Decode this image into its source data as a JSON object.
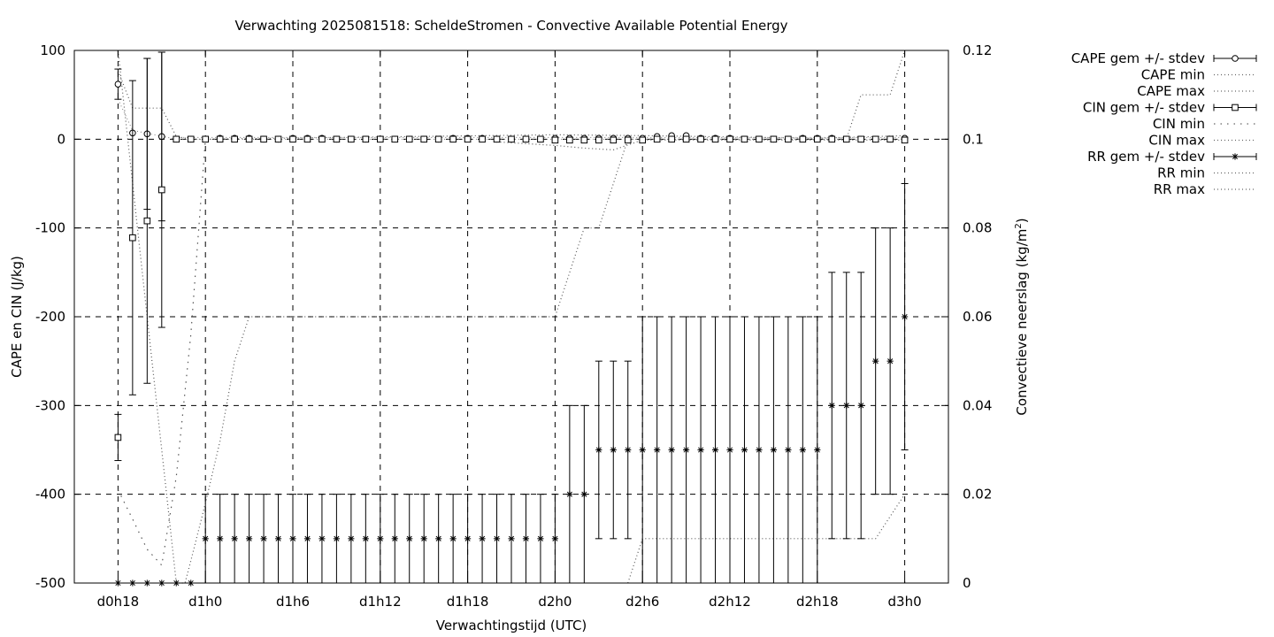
{
  "chart_data": {
    "type": "line",
    "title": "Verwachting 2025081518: ScheldeStromen - Convective Available Potential Energy",
    "xlabel": "Verwachtingstijd (UTC)",
    "ylabel": "CAPE en CIN (J/kg)",
    "y2label": "Convectieve neerslag (kg/m",
    "y2label_sup": "2",
    "y2label_end": ")",
    "x_unit": "forecast hours since d0h18",
    "xlim": [
      -3,
      57
    ],
    "ylim": [
      -500,
      100
    ],
    "y2lim": [
      0,
      0.12
    ],
    "grid": true,
    "legend_position": "outside-top-right",
    "x_ticks": [
      {
        "x": 0,
        "label": "d0h18"
      },
      {
        "x": 6,
        "label": "d1h0"
      },
      {
        "x": 12,
        "label": "d1h6"
      },
      {
        "x": 18,
        "label": "d1h12"
      },
      {
        "x": 24,
        "label": "d1h18"
      },
      {
        "x": 30,
        "label": "d2h0"
      },
      {
        "x": 36,
        "label": "d2h6"
      },
      {
        "x": 42,
        "label": "d2h12"
      },
      {
        "x": 48,
        "label": "d2h18"
      },
      {
        "x": 54,
        "label": "d3h0"
      }
    ],
    "y_ticks": [
      {
        "v": 100,
        "label": "100"
      },
      {
        "v": 0,
        "label": "0"
      },
      {
        "v": -100,
        "label": "-100"
      },
      {
        "v": -200,
        "label": "-200"
      },
      {
        "v": -300,
        "label": "-300"
      },
      {
        "v": -400,
        "label": "-400"
      },
      {
        "v": -500,
        "label": "-500"
      }
    ],
    "y2_ticks": [
      {
        "v": 0.12,
        "label": "0.12"
      },
      {
        "v": 0.1,
        "label": "0.1"
      },
      {
        "v": 0.08,
        "label": "0.08"
      },
      {
        "v": 0.06,
        "label": "0.06"
      },
      {
        "v": 0.04,
        "label": "0.04"
      },
      {
        "v": 0.02,
        "label": "0.02"
      },
      {
        "v": 0,
        "label": "0"
      }
    ],
    "legend": [
      {
        "label": "CAPE gem +/- stdev",
        "style": "errorbar",
        "marker": "circle"
      },
      {
        "label": "CAPE min",
        "style": "dotted"
      },
      {
        "label": "CAPE max",
        "style": "dotted"
      },
      {
        "label": "CIN gem +/- stdev",
        "style": "errorbar",
        "marker": "square"
      },
      {
        "label": "CIN min",
        "style": "dotted-sparse"
      },
      {
        "label": "CIN max",
        "style": "dotted"
      },
      {
        "label": "RR gem +/- stdev",
        "style": "errorbar",
        "marker": "star"
      },
      {
        "label": "RR min",
        "style": "dotted"
      },
      {
        "label": "RR max",
        "style": "dotted"
      }
    ],
    "series": [
      {
        "name": "CAPE gem +/- stdev",
        "axis": "y1",
        "x": [
          0,
          1,
          2,
          3
        ],
        "values": [
          62,
          7,
          6,
          3
        ],
        "err": [
          17,
          0,
          85,
          95
        ]
      },
      {
        "name": "CAPE gem +/- stdev (rest)",
        "axis": "y1",
        "x": [
          4,
          5,
          6,
          7,
          8,
          9,
          10,
          11,
          12,
          13,
          14,
          15,
          16,
          17,
          18,
          19,
          20,
          21,
          22,
          23,
          24,
          25,
          26,
          27,
          28,
          29,
          30,
          31,
          32,
          33,
          34,
          35,
          36,
          37,
          38,
          39,
          40,
          41,
          42,
          43,
          44,
          45,
          46,
          47,
          48,
          49,
          50,
          51,
          52,
          53,
          54
        ],
        "values": [
          0,
          0,
          0,
          1,
          1,
          1,
          0,
          0,
          1,
          1,
          1,
          0,
          0,
          0,
          0,
          0,
          0,
          0,
          0,
          1,
          1,
          1,
          0,
          0,
          0,
          0,
          1,
          1,
          1,
          1,
          1,
          1,
          1,
          3,
          4,
          4,
          1,
          1,
          1,
          0,
          0,
          0,
          0,
          1,
          1,
          1,
          0,
          0,
          0,
          0,
          1
        ]
      },
      {
        "name": "CIN gem +/- stdev",
        "axis": "y1",
        "x": [
          0,
          1,
          2,
          3
        ],
        "values": [
          -336,
          -111,
          -92,
          -57
        ],
        "err": [
          26,
          177,
          183,
          155
        ]
      },
      {
        "name": "CIN gem +/- stdev (rest)",
        "axis": "y1",
        "x": [
          4,
          5,
          6,
          7,
          8,
          9,
          10,
          11,
          12,
          13,
          14,
          15,
          16,
          17,
          18,
          19,
          20,
          21,
          22,
          23,
          24,
          25,
          26,
          27,
          28,
          29,
          30,
          31,
          32,
          33,
          34,
          35,
          36,
          37,
          38,
          39,
          40,
          41,
          42,
          43,
          44,
          45,
          46,
          47,
          48,
          49,
          50,
          51,
          52,
          53,
          54
        ],
        "values": [
          0,
          0,
          0,
          0,
          0,
          0,
          0,
          0,
          0,
          0,
          0,
          0,
          0,
          0,
          0,
          0,
          0,
          0,
          0,
          0,
          0,
          0,
          0,
          0,
          0,
          0,
          -1,
          -1,
          -1,
          -1,
          -1,
          -1,
          -1,
          0,
          0,
          0,
          0,
          0,
          0,
          0,
          0,
          0,
          0,
          0,
          0,
          0,
          0,
          0,
          0,
          0,
          -1
        ]
      },
      {
        "name": "RR gem +/- stdev",
        "axis": "y2",
        "x": [
          0,
          1,
          2,
          3,
          4,
          5,
          6,
          7,
          8,
          9,
          10,
          11,
          12,
          13,
          14,
          15,
          16,
          17,
          18,
          19,
          20,
          21,
          22,
          23,
          24,
          25,
          26,
          27,
          28,
          29,
          30,
          31,
          32,
          33,
          34,
          35,
          36,
          37,
          38,
          39,
          40,
          41,
          42,
          43,
          44,
          45,
          46,
          47,
          48,
          49,
          50,
          51,
          52,
          53,
          54
        ],
        "values": [
          0,
          0,
          0,
          0,
          0,
          0,
          0.01,
          0.01,
          0.01,
          0.01,
          0.01,
          0.01,
          0.01,
          0.01,
          0.01,
          0.01,
          0.01,
          0.01,
          0.01,
          0.01,
          0.01,
          0.01,
          0.01,
          0.01,
          0.01,
          0.01,
          0.01,
          0.01,
          0.01,
          0.01,
          0.01,
          0.02,
          0.02,
          0.03,
          0.03,
          0.03,
          0.03,
          0.03,
          0.03,
          0.03,
          0.03,
          0.03,
          0.03,
          0.03,
          0.03,
          0.03,
          0.03,
          0.03,
          0.03,
          0.04,
          0.04,
          0.04,
          0.05,
          0.05,
          0.06
        ],
        "err": [
          0,
          0,
          0,
          0,
          0,
          0,
          0.01,
          0.01,
          0.01,
          0.01,
          0.01,
          0.01,
          0.01,
          0.01,
          0.01,
          0.01,
          0.01,
          0.01,
          0.01,
          0.01,
          0.01,
          0.01,
          0.01,
          0.01,
          0.01,
          0.01,
          0.01,
          0.01,
          0.01,
          0.01,
          0.01,
          0.02,
          0.02,
          0.02,
          0.02,
          0.02,
          0.03,
          0.03,
          0.03,
          0.03,
          0.03,
          0.03,
          0.03,
          0.03,
          0.03,
          0.03,
          0.03,
          0.03,
          0.03,
          0.03,
          0.03,
          0.03,
          0.03,
          0.03,
          0.03
        ]
      },
      {
        "name": "CAPE max",
        "axis": "y1",
        "style": "dotted",
        "x": [
          0,
          1,
          2,
          3,
          4,
          5,
          6,
          30,
          36,
          48,
          54
        ],
        "values": [
          77,
          35,
          35,
          35,
          3,
          0,
          0,
          5,
          4,
          1,
          4
        ]
      },
      {
        "name": "CIN min",
        "axis": "y1",
        "style": "dotted-sparse",
        "x": [
          0,
          1,
          2,
          3,
          4,
          5,
          6
        ],
        "values": [
          -395,
          -428,
          -462,
          -480,
          -380,
          -220,
          0
        ]
      },
      {
        "name": "CIN min (late)",
        "axis": "y1",
        "style": "dotted",
        "x": [
          26,
          30,
          32,
          34,
          36,
          54
        ],
        "values": [
          -3,
          -7,
          -10,
          -12,
          -1,
          -1
        ]
      },
      {
        "name": "RR max",
        "axis": "y2",
        "style": "dotted",
        "x": [
          0,
          1,
          2,
          3,
          4,
          4.6,
          5,
          6,
          7,
          8,
          9,
          10,
          30,
          31,
          32,
          33,
          34,
          35,
          36,
          50,
          51,
          52,
          53,
          54
        ],
        "values": [
          0.12,
          0.09,
          0.06,
          0.03,
          0,
          0,
          0.005,
          0.018,
          0.032,
          0.05,
          0.06,
          0.06,
          0.06,
          0.07,
          0.08,
          0.08,
          0.09,
          0.1,
          0.1,
          0.1,
          0.11,
          0.11,
          0.11,
          0.12
        ]
      },
      {
        "name": "RR min",
        "axis": "y2",
        "style": "dotted",
        "x": [
          35,
          36,
          50,
          51,
          52,
          53,
          54
        ],
        "values": [
          0,
          0.01,
          0.01,
          0.01,
          0.01,
          0.015,
          0.02
        ]
      }
    ]
  }
}
